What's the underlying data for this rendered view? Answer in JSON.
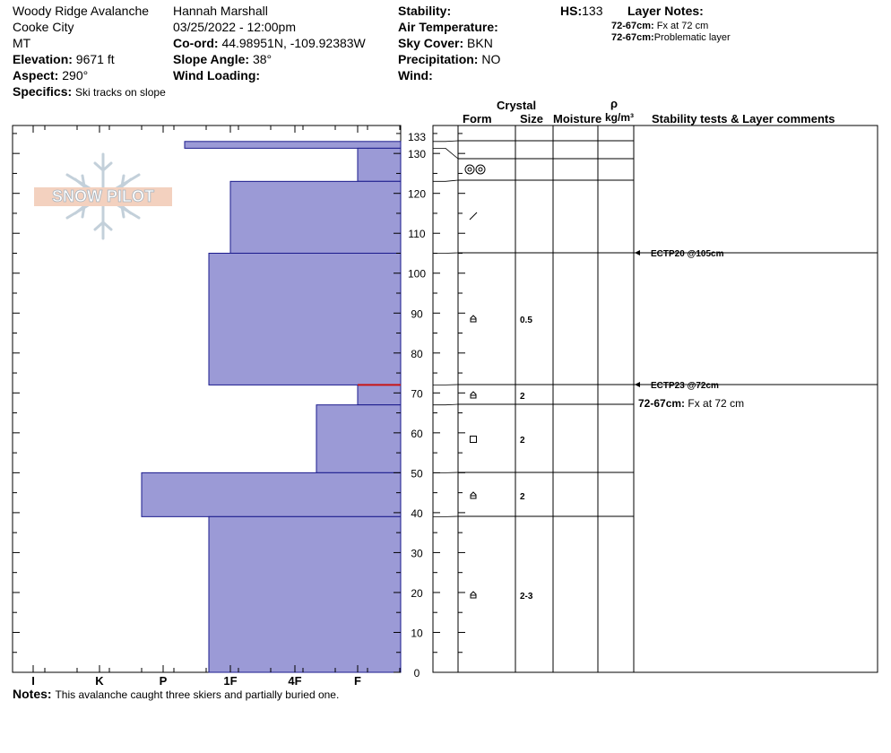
{
  "header": {
    "location": "Woody Ridge Avalanche",
    "area": "Cooke City",
    "state": "MT",
    "elevation_label": "Elevation:",
    "elevation_value": "9671 ft",
    "aspect_label": "Aspect:",
    "aspect_value": "290°",
    "specifics_label": "Specifics:",
    "specifics_value": "Ski tracks on slope",
    "observer": "Hannah Marshall",
    "datetime": "03/25/2022 - 12:00pm",
    "coord_label": "Co-ord:",
    "coord_value": "44.98951N, -109.92383W",
    "slope_label": "Slope Angle:",
    "slope_value": "38°",
    "wind_loading_label": "Wind Loading:",
    "stability_label": "Stability:",
    "air_temp_label": "Air Temperature:",
    "sky_label": "Sky Cover:",
    "sky_value": "BKN",
    "precip_label": "Precipitation:",
    "precip_value": "NO",
    "wind_label": "Wind:",
    "hs_label": "HS:",
    "hs_value": "133",
    "layer_notes_label": "Layer Notes:",
    "layer_notes": [
      {
        "range": "72-67cm:",
        "text": "Fx at 72 cm"
      },
      {
        "range": "72-67cm:",
        "text": "Problematic layer"
      }
    ]
  },
  "logo_text": "SNOW PILOT",
  "columns": {
    "crystal": "Crystal",
    "form": "Form",
    "size": "Size",
    "moisture": "Moisture",
    "rho": "ρ",
    "density_unit": "kg/m³",
    "comments": "Stability tests & Layer comments"
  },
  "notes_label": "Notes:",
  "notes_value": "This avalanche caught three skiers and partially buried one.",
  "chart_data": {
    "type": "bar",
    "orientation": "horizontal",
    "y_axis_label": "",
    "y_range": [
      0,
      133
    ],
    "y_ticks": [
      0,
      10,
      20,
      30,
      40,
      50,
      60,
      70,
      80,
      90,
      100,
      110,
      120,
      130,
      133
    ],
    "hardness_scale": [
      "I",
      "K",
      "P",
      "1F",
      "4F",
      "F"
    ],
    "layers": [
      {
        "top": 133,
        "bottom": 131.3,
        "hardness": "P+",
        "form": "",
        "size": ""
      },
      {
        "top": 131.3,
        "bottom": 123,
        "hardness": "F",
        "form": "rounded-polycrystals",
        "size": ""
      },
      {
        "top": 123,
        "bottom": 105,
        "hardness": "1F",
        "form": "decomposing-fragmented",
        "size": ""
      },
      {
        "top": 105,
        "bottom": 72,
        "hardness": "1F-",
        "form": "depth-hoar",
        "size": "0.5"
      },
      {
        "top": 72,
        "bottom": 67,
        "hardness": "F",
        "form": "depth-hoar",
        "size": "2"
      },
      {
        "top": 67,
        "bottom": 50,
        "hardness": "4F+",
        "form": "faceted",
        "size": "2"
      },
      {
        "top": 50,
        "bottom": 39,
        "hardness": "P-",
        "form": "depth-hoar",
        "size": "2"
      },
      {
        "top": 39,
        "bottom": 0,
        "hardness": "1F-",
        "form": "depth-hoar",
        "size": "2-3"
      }
    ],
    "problem_layer_depth": 72,
    "stability_tests": [
      {
        "depth": 105,
        "label": "ECTP20 @105cm"
      },
      {
        "depth": 72,
        "label": "ECTP23 @72cm"
      }
    ],
    "layer_comments": [
      {
        "depth": 72,
        "range": "72-67cm:",
        "text": "Fx at 72 cm"
      }
    ],
    "colors": {
      "bar": "#9b9ad6",
      "bar_edge": "#1a1a8c",
      "problem": "#c81414"
    }
  }
}
